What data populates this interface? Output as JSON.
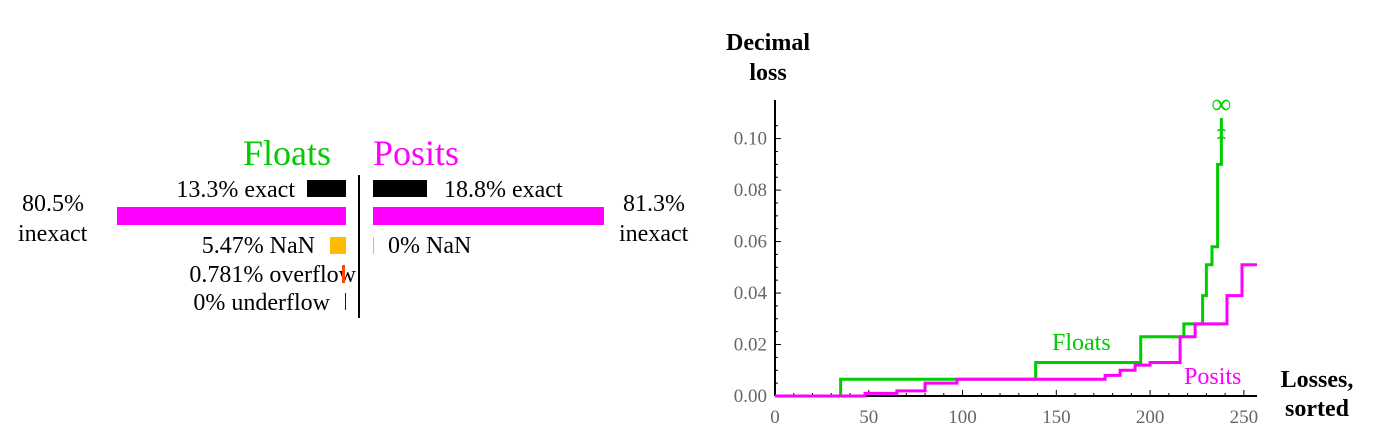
{
  "breakdown": {
    "floats": {
      "title": "Floats",
      "color": "#00cc00",
      "inexact_pct": "80.5%",
      "inexact_label": "inexact",
      "exact": "13.3% exact",
      "nan": "5.47% NaN",
      "overflow": "0.781% overflow",
      "underflow": "0% underflow",
      "values": {
        "exact": 13.3,
        "inexact": 80.5,
        "nan": 5.47,
        "overflow": 0.781,
        "underflow": 0
      }
    },
    "posits": {
      "title": "Posits",
      "color": "#ff00ff",
      "inexact_pct": "81.3%",
      "inexact_label": "inexact",
      "exact": "18.8% exact",
      "nan": "0% NaN",
      "values": {
        "exact": 18.8,
        "inexact": 81.3,
        "nan": 0
      }
    },
    "colors": {
      "exact": "#000000",
      "inexact": "#ff00ff",
      "nan": "#ffbb00",
      "overflow": "#ff4400",
      "underflow": "#0000ff"
    }
  },
  "chart_data": {
    "type": "line",
    "ylabel": "Decimal loss",
    "xlabel": "Losses, sorted",
    "xlim": [
      0,
      257
    ],
    "ylim": [
      0,
      0.115
    ],
    "xticks": [
      "0",
      "50",
      "100",
      "150",
      "200",
      "250"
    ],
    "yticks": [
      "0.00",
      "0.02",
      "0.04",
      "0.06",
      "0.08",
      "0.10"
    ],
    "annotation": "∞",
    "series": [
      {
        "name": "Floats",
        "color": "#00cc00",
        "step": true,
        "x": [
          0,
          35,
          139,
          195,
          218,
          228,
          230,
          233,
          236,
          238
        ],
        "y": [
          0,
          0.0065,
          0.013,
          0.023,
          0.028,
          0.039,
          0.051,
          0.058,
          0.09,
          0.108
        ]
      },
      {
        "name": "Posits",
        "color": "#ff00ff",
        "step": true,
        "x": [
          0,
          48,
          65,
          80,
          97,
          176,
          184,
          192,
          200,
          216,
          224,
          241,
          249,
          257
        ],
        "y": [
          0,
          0.001,
          0.002,
          0.005,
          0.0065,
          0.008,
          0.01,
          0.012,
          0.013,
          0.023,
          0.028,
          0.039,
          0.051,
          0.051
        ]
      }
    ]
  }
}
